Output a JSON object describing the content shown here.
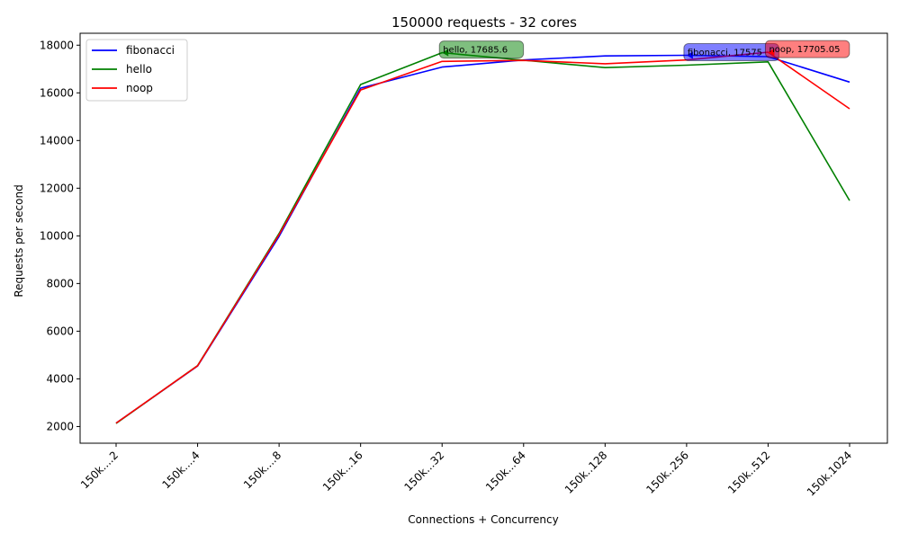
{
  "chart_data": {
    "type": "line",
    "title": "150000 requests - 32 cores",
    "xlabel": "Connections + Concurrency",
    "ylabel": "Requests per second",
    "categories": [
      "150k....2",
      "150k....4",
      "150k....8",
      "150k...16",
      "150k...32",
      "150k...64",
      "150k..128",
      "150k..256",
      "150k..512",
      "150k.1024"
    ],
    "ylim": [
      1300,
      18500
    ],
    "yticks": [
      2000,
      4000,
      6000,
      8000,
      10000,
      12000,
      14000,
      16000,
      18000
    ],
    "grid": false,
    "legend_position": "top-left",
    "series": [
      {
        "name": "fibonacci",
        "color": "#0000ff",
        "values": [
          2140,
          4540,
          9980,
          16200,
          17080,
          17380,
          17550,
          17575,
          17520,
          16450
        ]
      },
      {
        "name": "hello",
        "color": "#008000",
        "values": [
          2130,
          4560,
          10100,
          16350,
          17685.6,
          17370,
          17060,
          17160,
          17300,
          11480
        ]
      },
      {
        "name": "noop",
        "color": "#ff0000",
        "values": [
          2145,
          4550,
          10050,
          16120,
          17320,
          17360,
          17220,
          17380,
          17705.05,
          15330
        ]
      }
    ],
    "annotations": [
      {
        "series": "hello",
        "index": 4,
        "text": "hello, 17685.6",
        "color": "#008000"
      },
      {
        "series": "fibonacci",
        "index": 7,
        "text": "fibonacci, 17575",
        "color": "#0000ff"
      },
      {
        "series": "noop",
        "index": 8,
        "text": "noop, 17705.05",
        "color": "#ff0000"
      }
    ]
  }
}
